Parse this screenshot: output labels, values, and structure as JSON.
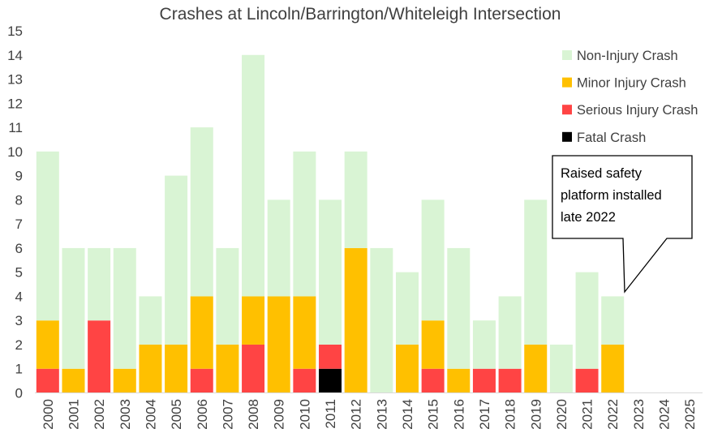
{
  "chart_data": {
    "type": "bar",
    "stacked": true,
    "title": "Crashes at Lincoln/Barrington/Whiteleigh Intersection",
    "xlabel": "",
    "ylabel": "",
    "ylim": [
      0,
      15
    ],
    "yticks": [
      0,
      1,
      2,
      3,
      4,
      5,
      6,
      7,
      8,
      9,
      10,
      11,
      12,
      13,
      14,
      15
    ],
    "grid": false,
    "legend_position": "right",
    "categories": [
      "2000",
      "2001",
      "2002",
      "2003",
      "2004",
      "2005",
      "2006",
      "2007",
      "2008",
      "2009",
      "2010",
      "2011",
      "2012",
      "2013",
      "2014",
      "2015",
      "2016",
      "2017",
      "2018",
      "2019",
      "2020",
      "2021",
      "2022",
      "2023",
      "2024",
      "2025"
    ],
    "series": [
      {
        "name": "Fatal Crash",
        "color": "#000000",
        "values": [
          0,
          0,
          0,
          0,
          0,
          0,
          0,
          0,
          0,
          0,
          0,
          1,
          0,
          0,
          0,
          0,
          0,
          0,
          0,
          0,
          0,
          0,
          0,
          0,
          0,
          0
        ]
      },
      {
        "name": "Serious Injury Crash",
        "color": "#ff4444",
        "values": [
          1,
          0,
          3,
          0,
          0,
          0,
          1,
          0,
          2,
          0,
          1,
          1,
          0,
          0,
          0,
          1,
          0,
          1,
          1,
          0,
          0,
          1,
          0,
          0,
          0,
          0
        ]
      },
      {
        "name": "Minor Injury Crash",
        "color": "#ffc000",
        "values": [
          2,
          1,
          0,
          1,
          2,
          2,
          3,
          2,
          2,
          4,
          3,
          0,
          6,
          0,
          2,
          2,
          1,
          0,
          0,
          2,
          0,
          0,
          2,
          0,
          0,
          0
        ]
      },
      {
        "name": "Non-Injury Crash",
        "color": "#d9f4d4",
        "values": [
          7,
          5,
          3,
          5,
          2,
          7,
          7,
          4,
          10,
          4,
          6,
          6,
          4,
          6,
          3,
          5,
          5,
          2,
          3,
          6,
          2,
          4,
          2,
          0,
          0,
          0
        ]
      }
    ],
    "legend_order": [
      "Non-Injury Crash",
      "Minor Injury Crash",
      "Serious Injury Crash",
      "Fatal Crash"
    ],
    "annotation": {
      "text_lines": [
        "Raised safety",
        "platform installed",
        "late 2022"
      ],
      "points_to_category": "2022"
    }
  }
}
